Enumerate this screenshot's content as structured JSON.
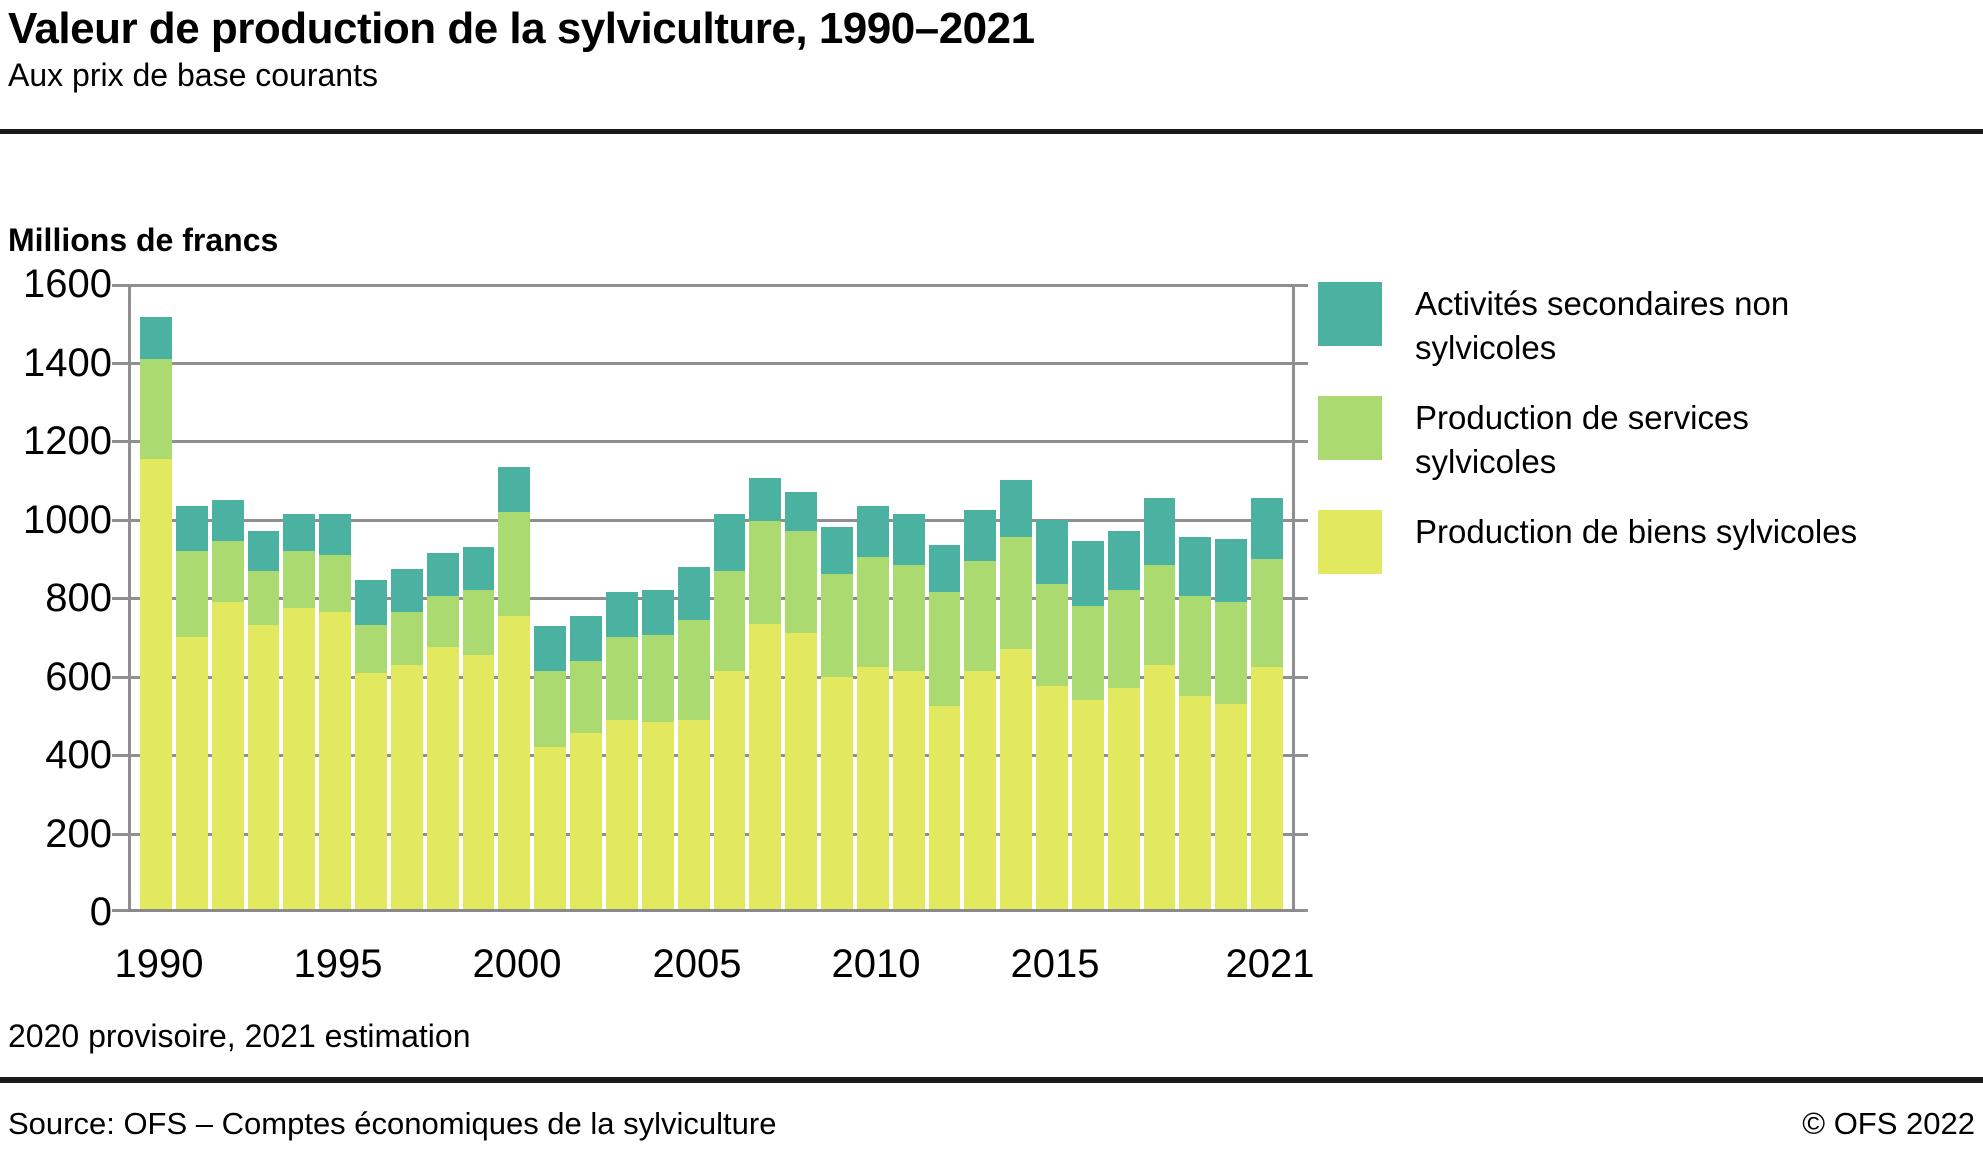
{
  "header": {
    "title": "Valeur de production de la sylviculture, 1990–2021",
    "subtitle": "Aux prix de base courants"
  },
  "unit_label": "Millions de francs",
  "footnote": "2020 provisoire, 2021 estimation",
  "footer": {
    "source": "Source: OFS – Comptes économiques de la sylviculture",
    "copyright": "© OFS 2022"
  },
  "colors": {
    "biens": "#E2E95E",
    "services": "#ABDA71",
    "secondaires": "#4BB1A0",
    "gridline": "#8F8F8F",
    "rule": "#1A1A1A",
    "text": "#000000"
  },
  "chart_data": {
    "type": "bar",
    "stacked": true,
    "title": "Valeur de production de la sylviculture, 1990–2021",
    "subtitle": "Aux prix de base courants",
    "ylabel": "Millions de francs",
    "xlabel": "",
    "ylim": [
      0,
      1600
    ],
    "ytick_step": 200,
    "yticks": [
      0,
      200,
      400,
      600,
      800,
      1000,
      1200,
      1400,
      1600
    ],
    "grid": true,
    "legend_position": "right",
    "categories": [
      "1990",
      "1991",
      "1992",
      "1993",
      "1994",
      "1995",
      "1996",
      "1997",
      "1998",
      "1999",
      "2000",
      "2001",
      "2002",
      "2003",
      "2004",
      "2005",
      "2006",
      "2007",
      "2008",
      "2009",
      "2010",
      "2011",
      "2012",
      "2013",
      "2014",
      "2015",
      "2016",
      "2017",
      "2018",
      "2019",
      "2020",
      "2021"
    ],
    "xtick_labels": [
      "1990",
      "1995",
      "2000",
      "2005",
      "2010",
      "2015",
      "2021"
    ],
    "xtick_indices": [
      0,
      5,
      10,
      15,
      20,
      25,
      31
    ],
    "series": [
      {
        "name": "Production de biens sylvicoles",
        "color_key": "biens",
        "values": [
          1155,
          700,
          790,
          730,
          775,
          765,
          610,
          630,
          675,
          655,
          755,
          420,
          455,
          490,
          485,
          490,
          615,
          735,
          710,
          600,
          625,
          615,
          525,
          615,
          670,
          575,
          540,
          570,
          630,
          550,
          530,
          625
        ]
      },
      {
        "name": "Production de services sylvicoles",
        "color_key": "services",
        "values": [
          255,
          220,
          155,
          140,
          145,
          145,
          120,
          135,
          130,
          165,
          265,
          195,
          185,
          210,
          220,
          255,
          255,
          260,
          260,
          260,
          280,
          270,
          290,
          280,
          285,
          260,
          240,
          250,
          255,
          255,
          260,
          275
        ]
      },
      {
        "name": "Activités secondaires non sylvicoles",
        "color_key": "secondaires",
        "values": [
          105,
          115,
          105,
          100,
          95,
          105,
          115,
          110,
          110,
          110,
          115,
          115,
          115,
          115,
          115,
          135,
          145,
          110,
          100,
          120,
          130,
          130,
          120,
          130,
          145,
          165,
          165,
          150,
          170,
          150,
          160,
          155
        ]
      }
    ]
  }
}
